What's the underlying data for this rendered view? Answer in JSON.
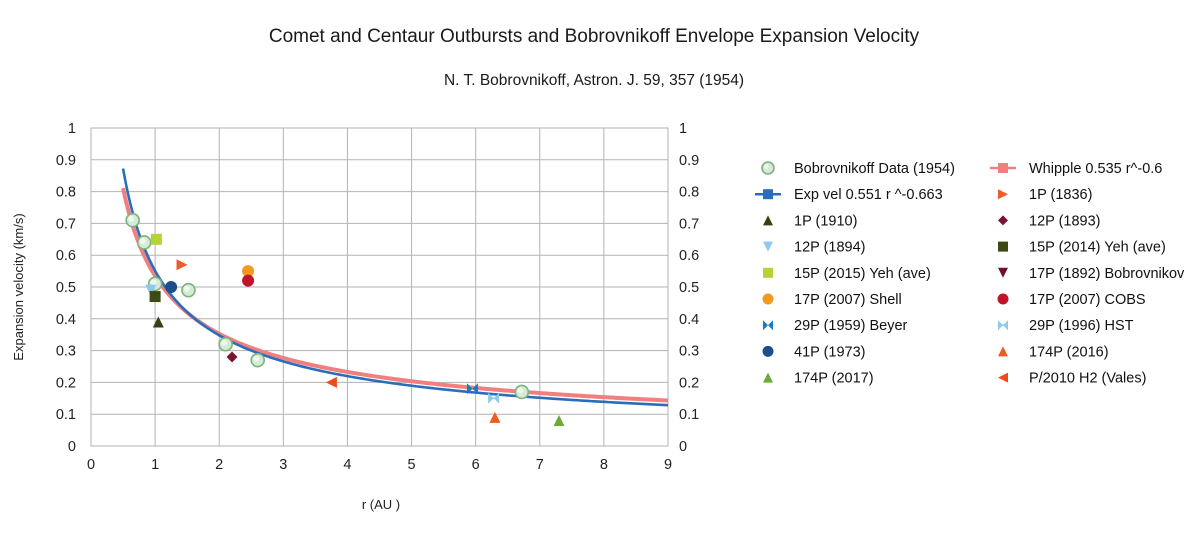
{
  "chart_data": {
    "type": "scatter",
    "title": "Comet and Centaur Outbursts and Bobrovnikoff Envelope Expansion Velocity",
    "subtitle": "N. T. Bobrovnikoff, Astron. J. 59, 357 (1954)",
    "xlabel": "r (AU )",
    "ylabel": "Expansion velocity (km/s)",
    "xlim": [
      0,
      9
    ],
    "ylim": [
      0,
      1
    ],
    "x_ticks": [
      "0",
      "1",
      "2",
      "3",
      "4",
      "5",
      "6",
      "7",
      "8",
      "9"
    ],
    "y_ticks": [
      "0",
      "0.1",
      "0.2",
      "0.3",
      "0.4",
      "0.5",
      "0.6",
      "0.7",
      "0.8",
      "0.9",
      "1"
    ],
    "grid": true,
    "legend_position": "right",
    "series": [
      {
        "name": "Bobrovnikoff Data (1954)",
        "marker": "circle-green",
        "color": "#8fbf8f",
        "points": [
          [
            0.65,
            0.71
          ],
          [
            0.83,
            0.64
          ],
          [
            1.0,
            0.51
          ],
          [
            1.52,
            0.49
          ],
          [
            2.1,
            0.32
          ],
          [
            2.6,
            0.27
          ],
          [
            6.72,
            0.17
          ]
        ]
      },
      {
        "name": "Whipple  0.535 r^-0.6",
        "marker": "square",
        "color": "#f08080",
        "line": true,
        "curve": {
          "coef": 0.535,
          "exp": -0.6,
          "xmin": 0.5,
          "xmax": 9
        }
      },
      {
        "name": "Exp vel 0.551 r ^-0.663",
        "marker": "square",
        "color": "#2a6ebb",
        "line": true,
        "curve": {
          "coef": 0.551,
          "exp": -0.663,
          "xmin": 0.5,
          "xmax": 9
        }
      },
      {
        "name": "1P (1836)",
        "marker": "triangle-right",
        "color": "#f05a28",
        "points": [
          [
            1.42,
            0.57
          ]
        ]
      },
      {
        "name": "1P (1910)",
        "marker": "triangle-up",
        "color": "#3d3d12",
        "points": [
          [
            1.05,
            0.39
          ]
        ]
      },
      {
        "name": "12P (1893)",
        "marker": "diamond",
        "color": "#7a1530",
        "points": [
          [
            2.2,
            0.28
          ]
        ]
      },
      {
        "name": "12P (1894)",
        "marker": "triangle-down",
        "color": "#8cc8f0",
        "points": [
          [
            0.93,
            0.49
          ]
        ]
      },
      {
        "name": "15P (2014) Yeh (ave)",
        "marker": "square",
        "color": "#3d4a12",
        "points": [
          [
            1.0,
            0.47
          ]
        ]
      },
      {
        "name": "15P (2015) Yeh (ave)",
        "marker": "square",
        "color": "#b5d335",
        "points": [
          [
            1.02,
            0.65
          ]
        ]
      },
      {
        "name": "17P (1892) Bobrovnikov",
        "marker": "triangle-down",
        "color": "#6e1030",
        "points": []
      },
      {
        "name": "17P (2007) Shell",
        "marker": "circle",
        "color": "#f39a1e",
        "points": [
          [
            2.45,
            0.55
          ]
        ]
      },
      {
        "name": "17P (2007) COBS",
        "marker": "circle",
        "color": "#c0142a",
        "points": [
          [
            2.45,
            0.52
          ]
        ]
      },
      {
        "name": "29P (1959) Beyer",
        "marker": "x-shape",
        "color": "#1a7bc4",
        "points": [
          [
            5.95,
            0.18
          ]
        ]
      },
      {
        "name": "29P (1996) HST",
        "marker": "hourglass",
        "color": "#8ccbf0",
        "points": [
          [
            6.28,
            0.15
          ]
        ]
      },
      {
        "name": "41P (1973)",
        "marker": "circle",
        "color": "#1c4e8c",
        "points": [
          [
            1.25,
            0.5
          ]
        ]
      },
      {
        "name": "174P (2016)",
        "marker": "triangle-up",
        "color": "#f05a1e",
        "points": [
          [
            6.3,
            0.09
          ]
        ]
      },
      {
        "name": "174P (2017)",
        "marker": "triangle-up",
        "color": "#6aab3c",
        "points": [
          [
            7.3,
            0.08
          ]
        ]
      },
      {
        "name": "P/2010 H2 (Vales)",
        "marker": "triangle-left",
        "color": "#f04a1e",
        "points": [
          [
            3.75,
            0.2
          ]
        ]
      }
    ]
  }
}
